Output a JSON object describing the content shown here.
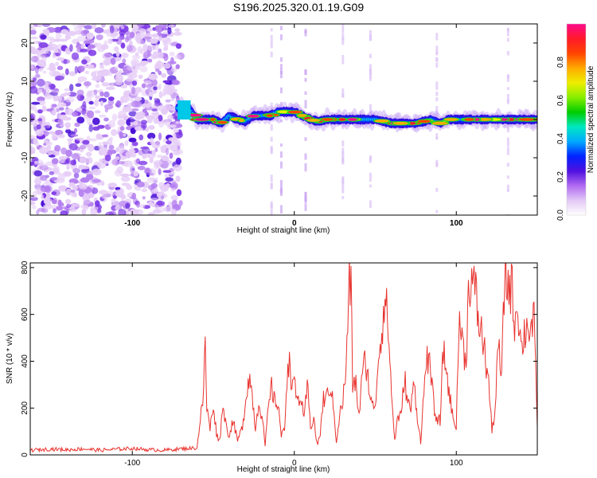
{
  "title": "S196.2025.320.01.19.G09",
  "chart_data": [
    {
      "type": "heatmap",
      "title": "S196.2025.320.01.19.G09",
      "xlabel": "Height of straight line (km)",
      "ylabel": "Frequency (Hz)",
      "xlim": [
        -163,
        150
      ],
      "ylim": [
        -25,
        25
      ],
      "x_ticks": [
        "-100",
        "0",
        "100"
      ],
      "x_tick_values": [
        -100,
        0,
        100
      ],
      "y_ticks": [
        "20",
        "10",
        "0",
        "-10",
        "-20"
      ],
      "y_tick_values": [
        20,
        10,
        0,
        -10,
        -20
      ],
      "noise_region_x": [
        -163,
        -70
      ],
      "ridge": {
        "x": [
          -72,
          -65,
          -60,
          -55,
          -50,
          -45,
          -40,
          -35,
          -30,
          -25,
          -20,
          -15,
          -10,
          -5,
          0,
          5,
          10,
          15,
          20,
          25,
          30,
          35,
          40,
          45,
          50,
          55,
          60,
          65,
          70,
          75,
          80,
          85,
          90,
          95,
          100,
          105,
          110,
          115,
          120,
          125,
          130,
          135,
          140,
          145,
          150
        ],
        "y": [
          3,
          3,
          0,
          0,
          0,
          -1,
          1,
          0,
          -0.5,
          1,
          1,
          1,
          2,
          2,
          2,
          1,
          0,
          -0.5,
          0,
          0,
          0,
          0,
          0,
          0,
          0,
          -0.5,
          -1,
          -1,
          -1,
          -1,
          -0.5,
          0,
          -1,
          0,
          0,
          0,
          0,
          0,
          0,
          0,
          0,
          0,
          0,
          0,
          0
        ]
      },
      "colorbar": {
        "label": "Normalized spectral amplitude",
        "range": [
          0,
          1
        ],
        "ticks": [
          "0.0",
          "0.2",
          "0.4",
          "0.6",
          "0.8"
        ],
        "tick_values": [
          0,
          0.2,
          0.4,
          0.6,
          0.8
        ],
        "colors": [
          "#ffffff",
          "#e3c8f6",
          "#b06af0",
          "#5010e0",
          "#0022ff",
          "#00aaff",
          "#00e8c0",
          "#00cc00",
          "#88ee00",
          "#eeee00",
          "#ffaa00",
          "#ff4400",
          "#ff1a2a",
          "#ff0a8c"
        ]
      }
    },
    {
      "type": "line",
      "xlabel": "Height of straight line (km)",
      "ylabel": "SNR (10 * v/v)",
      "xlim": [
        -163,
        150
      ],
      "ylim": [
        0,
        820
      ],
      "x_ticks": [
        "-100",
        "0",
        "100"
      ],
      "x_tick_values": [
        -100,
        0,
        100
      ],
      "y_ticks": [
        "0",
        "200",
        "400",
        "600",
        "800"
      ],
      "y_tick_values": [
        0,
        200,
        400,
        600,
        800
      ],
      "color": "#e8332e",
      "series": [
        {
          "name": "SNR",
          "x": [
            -163,
            -150,
            -140,
            -130,
            -120,
            -110,
            -100,
            -90,
            -80,
            -70,
            -60,
            -58,
            -56,
            -55,
            -54,
            -52,
            -50,
            -48,
            -46,
            -44,
            -42,
            -40,
            -38,
            -35,
            -32,
            -30,
            -28,
            -26,
            -24,
            -22,
            -20,
            -18,
            -16,
            -14,
            -12,
            -10,
            -8,
            -6,
            -4,
            -2,
            0,
            2,
            4,
            6,
            8,
            10,
            12,
            14,
            16,
            18,
            20,
            22,
            24,
            26,
            28,
            30,
            32,
            34,
            35,
            36,
            38,
            40,
            42,
            44,
            46,
            48,
            50,
            52,
            54,
            56,
            58,
            60,
            62,
            64,
            66,
            68,
            70,
            72,
            74,
            76,
            78,
            80,
            82,
            84,
            86,
            88,
            90,
            92,
            94,
            96,
            98,
            100,
            102,
            104,
            106,
            108,
            110,
            112,
            114,
            116,
            118,
            120,
            122,
            124,
            126,
            128,
            130,
            132,
            134,
            136,
            138,
            140,
            142,
            144,
            146,
            148,
            150
          ],
          "values": [
            20,
            25,
            22,
            26,
            20,
            24,
            28,
            22,
            20,
            26,
            30,
            160,
            250,
            520,
            200,
            110,
            220,
            90,
            60,
            220,
            120,
            80,
            150,
            60,
            120,
            240,
            340,
            260,
            110,
            230,
            170,
            40,
            200,
            290,
            220,
            230,
            80,
            110,
            420,
            340,
            290,
            230,
            250,
            140,
            300,
            120,
            160,
            40,
            90,
            240,
            240,
            300,
            210,
            60,
            170,
            230,
            370,
            750,
            700,
            310,
            300,
            170,
            340,
            410,
            300,
            200,
            220,
            420,
            540,
            670,
            550,
            260,
            60,
            170,
            160,
            340,
            220,
            200,
            310,
            160,
            60,
            260,
            440,
            350,
            220,
            140,
            150,
            450,
            350,
            250,
            150,
            130,
            610,
            460,
            410,
            770,
            730,
            680,
            560,
            510,
            410,
            310,
            100,
            200,
            470,
            320,
            800,
            720,
            730,
            570,
            660,
            450,
            520,
            560,
            540,
            560,
            120
          ]
        }
      ]
    }
  ]
}
